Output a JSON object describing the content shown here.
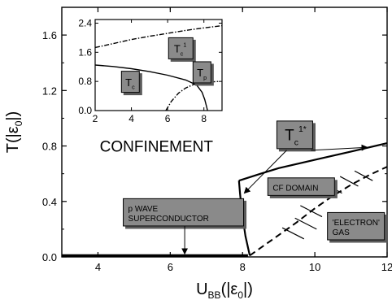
{
  "chart_data": [
    {
      "type": "line",
      "xlabel": {
        "main": "U",
        "sub": "BB",
        "rest": "(|ε",
        "sub2": "0",
        "end": "|)"
      },
      "ylabel": {
        "main": "T(|ε",
        "sub": "0",
        "end": "|)"
      },
      "xlim": [
        3,
        12
      ],
      "ylim": [
        0,
        1.8
      ],
      "x_ticks": [
        4,
        6,
        8,
        10,
        12
      ],
      "y_ticks": [
        0.0,
        0.4,
        0.8,
        1.2,
        1.6
      ],
      "x_tick_labels": [
        "4",
        "6",
        "8",
        "10",
        "12"
      ],
      "y_tick_labels": [
        "0.0",
        "0.4",
        "0.8",
        "1.2",
        "1.6"
      ],
      "series": [
        {
          "style": "solid-thick",
          "x": [
            3.0,
            4.0,
            5.0,
            6.0,
            7.0,
            8.0,
            8.15
          ],
          "y": [
            0.01,
            0.01,
            0.01,
            0.01,
            0.01,
            0.01,
            0.01
          ]
        },
        {
          "style": "solid",
          "x": [
            8.2,
            8.08,
            7.98,
            7.93,
            7.9
          ],
          "y": [
            0.01,
            0.15,
            0.33,
            0.46,
            0.55
          ]
        },
        {
          "style": "solid",
          "x": [
            7.9,
            8.5,
            9.0,
            10.0,
            11.0,
            12.0
          ],
          "y": [
            0.55,
            0.6,
            0.64,
            0.7,
            0.76,
            0.82
          ]
        },
        {
          "style": "dashed",
          "x": [
            8.2,
            8.8,
            9.5,
            10.0,
            10.5,
            11.0,
            11.5,
            12.0
          ],
          "y": [
            0.01,
            0.12,
            0.25,
            0.35,
            0.44,
            0.52,
            0.59,
            0.65
          ]
        }
      ],
      "hatch_marks": [
        {
          "x1": 10.25,
          "y1": 0.53,
          "x2": 10.75,
          "y2": 0.46
        },
        {
          "x1": 10.7,
          "y1": 0.58,
          "x2": 11.2,
          "y2": 0.51
        },
        {
          "x1": 11.1,
          "y1": 0.62,
          "x2": 11.6,
          "y2": 0.55
        },
        {
          "x1": 9.6,
          "y1": 0.37,
          "x2": 10.2,
          "y2": 0.29
        },
        {
          "x1": 9.45,
          "y1": 0.28,
          "x2": 10.05,
          "y2": 0.2
        },
        {
          "x1": 9.1,
          "y1": 0.21,
          "x2": 9.7,
          "y2": 0.13
        }
      ],
      "annotations": [
        {
          "kind": "text",
          "text": "CONFINEMENT",
          "x": 4.05,
          "y": 0.76
        },
        {
          "kind": "box",
          "lines": [
            "p WAVE",
            "SUPERCONDUCTOR"
          ],
          "x": 4.7,
          "y": 0.42,
          "arrow_to": [
            6.4,
            0.01
          ]
        },
        {
          "kind": "box",
          "lines": [
            "CF DOMAIN"
          ],
          "x": 8.7,
          "y": 0.57
        },
        {
          "kind": "box",
          "lines": [
            "'ELECTRON'",
            "GAS"
          ],
          "x": 10.35,
          "y": 0.32
        },
        {
          "kind": "box-math",
          "main": "T",
          "sub": "c",
          "sup": "1*",
          "x": 8.95,
          "y": 0.98,
          "arrows_to": [
            [
              8.05,
              0.46
            ],
            [
              11.45,
              0.79
            ]
          ]
        }
      ]
    },
    {
      "type": "line",
      "inset": true,
      "xlim": [
        2,
        9
      ],
      "ylim": [
        0,
        2.5
      ],
      "x_ticks": [
        2,
        4,
        6,
        8
      ],
      "y_ticks": [
        0.0,
        0.8,
        1.6,
        2.4
      ],
      "x_tick_labels": [
        "2",
        "4",
        "6",
        "8"
      ],
      "y_tick_labels": [
        "0.0",
        "0.8",
        "1.6",
        "2.4"
      ],
      "series": [
        {
          "label": "Tc",
          "style": "solid",
          "x": [
            2.0,
            3.0,
            4.0,
            5.0,
            6.0,
            7.0,
            7.6,
            7.9,
            8.05,
            8.15,
            8.2
          ],
          "y": [
            1.25,
            1.21,
            1.15,
            1.07,
            0.97,
            0.84,
            0.7,
            0.5,
            0.3,
            0.1,
            0.0
          ]
        },
        {
          "label": "Tc1",
          "style": "dash-dot",
          "x": [
            2.0,
            3.0,
            4.0,
            5.0,
            6.0,
            7.0,
            8.0,
            9.0
          ],
          "y": [
            1.73,
            1.84,
            1.95,
            2.04,
            2.12,
            2.2,
            2.27,
            2.33
          ]
        },
        {
          "label": "Tp",
          "style": "dash-dot",
          "x": [
            5.9,
            6.2,
            6.6,
            7.0,
            7.4,
            7.8,
            8.2,
            8.8
          ],
          "y": [
            0.0,
            0.25,
            0.48,
            0.62,
            0.71,
            0.76,
            0.78,
            0.8
          ]
        }
      ],
      "annotations": [
        {
          "kind": "box-math",
          "main": "T",
          "sub": "c",
          "sup": "1",
          "x": 6.05,
          "y": 2.0
        },
        {
          "kind": "box-math",
          "main": "T",
          "sub": "c",
          "sup": "",
          "x": 3.45,
          "y": 1.08
        },
        {
          "kind": "box-math",
          "main": "T",
          "sub": "p",
          "sup": "",
          "x": 7.4,
          "y": 1.34
        }
      ]
    }
  ]
}
